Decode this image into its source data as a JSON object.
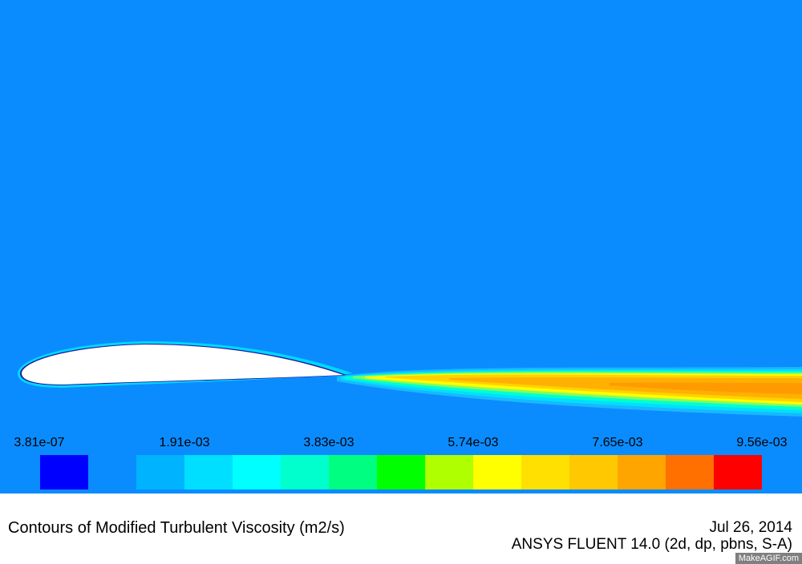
{
  "plot": {
    "background_color": "#0a8cff",
    "airfoil_fill": "#ffffff",
    "airfoil_outline": "#1a1aa0"
  },
  "legend": {
    "tick_labels": [
      "3.81e-07",
      "1.91e-03",
      "3.83e-03",
      "5.74e-03",
      "7.65e-03",
      "9.56e-03"
    ],
    "colors": [
      "#0000ff",
      "#00b3ff",
      "#00dfff",
      "#00ffff",
      "#00ffcc",
      "#00ff80",
      "#00ff00",
      "#b0ff00",
      "#ffff00",
      "#ffe000",
      "#ffc800",
      "#ffa500",
      "#ff7000",
      "#ff0000"
    ]
  },
  "footer": {
    "title": "Contours of Modified Turbulent Viscosity (m2/s)",
    "date": "Jul 26, 2014",
    "solver": "ANSYS FLUENT 14.0 (2d, dp, pbns, S-A)"
  },
  "watermark": "MakeAGIF.com"
}
